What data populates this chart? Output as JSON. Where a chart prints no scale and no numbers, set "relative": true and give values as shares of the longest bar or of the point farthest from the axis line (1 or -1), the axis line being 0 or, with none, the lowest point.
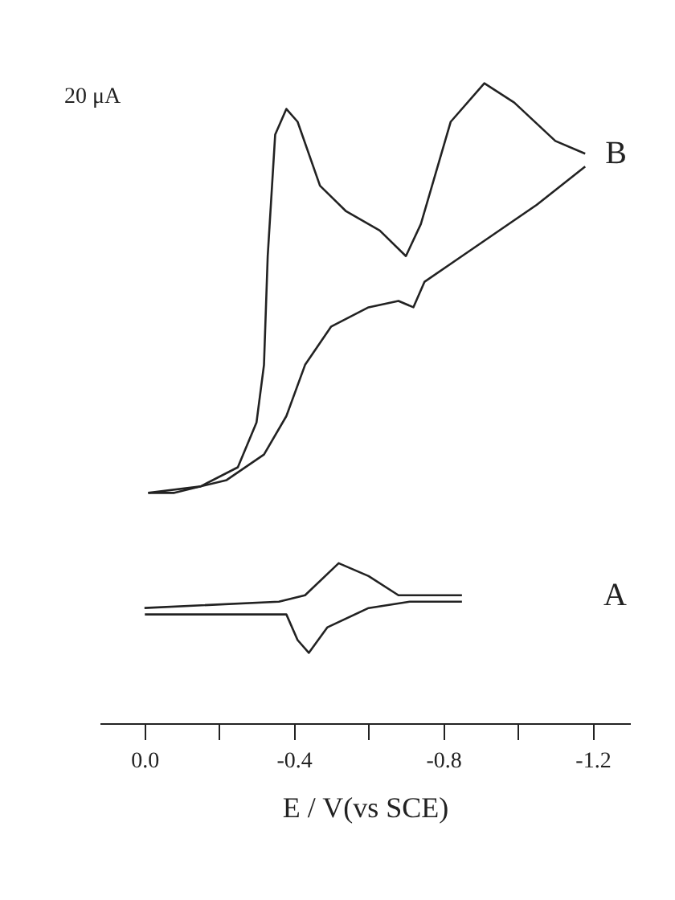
{
  "chart_data": {
    "type": "line",
    "relative": true,
    "xlabel": "E / V(vs SCE)",
    "xlim": [
      0.12,
      -1.3
    ],
    "xticks": [
      {
        "value": 0,
        "label": "0.0"
      },
      {
        "value": -0.2,
        "label": null
      },
      -0.4,
      {
        "value": -0.6,
        "label": null
      },
      -0.8,
      {
        "value": -1.0,
        "label": null
      },
      -1.2
    ],
    "tick_labels": "x",
    "grid": false,
    "legend": false,
    "marker": "none",
    "line_style": "solid",
    "annotations": [
      "20 μA"
    ],
    "series": [
      {
        "name": "B",
        "color": "#222222",
        "x": [
          -0.01,
          -0.15,
          -0.25,
          -0.3,
          -0.32,
          -0.33,
          -0.35,
          -0.38,
          -0.41,
          -0.47,
          -0.54,
          -0.63,
          -0.7,
          -0.74,
          -0.82,
          -0.91,
          -0.99,
          -1.1,
          -1.18
        ],
        "values": [
          0.36,
          0.37,
          0.4,
          0.47,
          0.56,
          0.73,
          0.92,
          0.96,
          0.94,
          0.84,
          0.8,
          0.77,
          0.73,
          0.78,
          0.94,
          1.0,
          0.97,
          0.91,
          0.89
        ]
      },
      {
        "color": "#222222",
        "x": [
          -1.18,
          -1.05,
          -0.85,
          -0.75,
          -0.72,
          -0.68,
          -0.6,
          -0.5,
          -0.43,
          -0.38,
          -0.32,
          -0.22,
          -0.08,
          -0.01
        ],
        "values": [
          0.87,
          0.81,
          0.73,
          0.69,
          0.65,
          0.66,
          0.65,
          0.62,
          0.56,
          0.48,
          0.42,
          0.38,
          0.36,
          0.36
        ]
      },
      {
        "name": "A",
        "color": "#222222",
        "x": [
          0.0,
          -0.36,
          -0.43,
          -0.52,
          -0.6,
          -0.68,
          -0.85
        ],
        "values": [
          0.18,
          0.19,
          0.2,
          0.25,
          0.23,
          0.2,
          0.2
        ]
      },
      {
        "color": "#222222",
        "x": [
          -0.85,
          -0.71,
          -0.6,
          -0.49,
          -0.44,
          -0.41,
          -0.38,
          -0.001
        ],
        "values": [
          0.19,
          0.19,
          0.18,
          0.15,
          0.11,
          0.13,
          0.17,
          0.17
        ]
      }
    ]
  }
}
